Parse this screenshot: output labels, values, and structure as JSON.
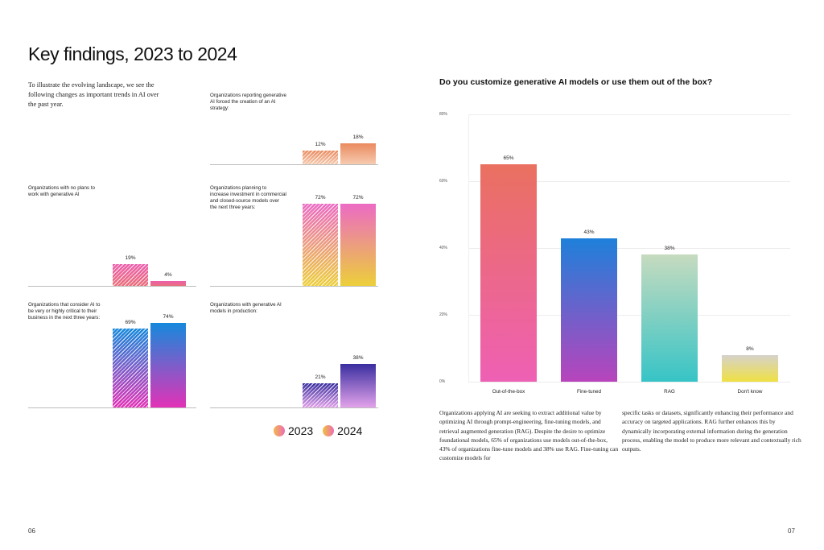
{
  "left_page": {
    "title": "Key findings, 2023 to 2024",
    "intro": "To illustrate the evolving landscape, we see the following changes as important trends in AI over the past year.",
    "page_number": "06",
    "legend": [
      {
        "label": "2023",
        "style": "hatched"
      },
      {
        "label": "2024",
        "style": "solid"
      }
    ]
  },
  "right_page": {
    "body_col1": "Organizations applying AI are seeking to extract additional value by optimizing AI through prompt-engineering, fine-tuning models, and retrieval augmented generation (RAG). Despite the desire to optimize foundational models, 65% of organizations use models out-of-the-box, 43% of organizations fine-tune models and 38% use RAG. Fine-tuning can customize models for",
    "body_col2": "specific tasks or datasets, significantly enhancing their performance and accuracy on targeted applications. RAG further enhances this by dynamically incorporating external information during the generation process, enabling the model to produce more relevant and contextually rich outputs.",
    "page_number": "07"
  },
  "chart_data": [
    {
      "type": "bar",
      "title": "Organizations reporting generative AI forced the creation of an AI strategy:",
      "categories": [
        "2023",
        "2024"
      ],
      "values": [
        12,
        18
      ],
      "labels": [
        "12%",
        "18%"
      ],
      "colors": {
        "top": "#ea8a5e",
        "bottom": "#f6cbb0"
      }
    },
    {
      "type": "bar",
      "title": "Organizations with no plans to work with generative AI",
      "categories": [
        "2023",
        "2024"
      ],
      "values": [
        19,
        4
      ],
      "labels": [
        "19%",
        "4%"
      ],
      "colors": {
        "top": "#ec5fae",
        "bottom": "#ea6f7a"
      }
    },
    {
      "type": "bar",
      "title": "Organizations planning to increase investment in commercial and closed-source models over the next three years:",
      "categories": [
        "2023",
        "2024"
      ],
      "values": [
        72,
        72
      ],
      "labels": [
        "72%",
        "72%"
      ],
      "colors": {
        "top": "#ec6bc4",
        "bottom": "#eccf3a"
      }
    },
    {
      "type": "bar",
      "title": "Organizations that consider AI to be very or highly critical to their business in the next three years:",
      "categories": [
        "2023",
        "2024"
      ],
      "values": [
        69,
        74
      ],
      "labels": [
        "69%",
        "74%"
      ],
      "colors": {
        "top": "#1589dc",
        "bottom": "#e332b7"
      }
    },
    {
      "type": "bar",
      "title": "Organizations with generative AI models in production:",
      "categories": [
        "2023",
        "2024"
      ],
      "values": [
        21,
        38
      ],
      "labels": [
        "21%",
        "38%"
      ],
      "colors": {
        "top": "#3a2fa0",
        "bottom": "#e3a2ea"
      }
    },
    {
      "type": "bar",
      "title": "Do you customize generative AI models or use them out of the box?",
      "categories": [
        "Out-of-the-box",
        "Fine-tuned",
        "RAG",
        "Don't know"
      ],
      "values": [
        65,
        43,
        38,
        8
      ],
      "labels": [
        "65%",
        "43%",
        "38%",
        "8%"
      ],
      "yticks": [
        "0%",
        "20%",
        "40%",
        "60%",
        "80%"
      ],
      "ylim": [
        0,
        80
      ],
      "grid": true,
      "colors": [
        {
          "top": "#ea7060",
          "bottom": "#ee60b4"
        },
        {
          "top": "#1e80da",
          "bottom": "#b844bc"
        },
        {
          "top": "#c6dbbf",
          "bottom": "#37c4c6"
        },
        {
          "top": "#d6d2cb",
          "bottom": "#efe042"
        }
      ]
    }
  ]
}
